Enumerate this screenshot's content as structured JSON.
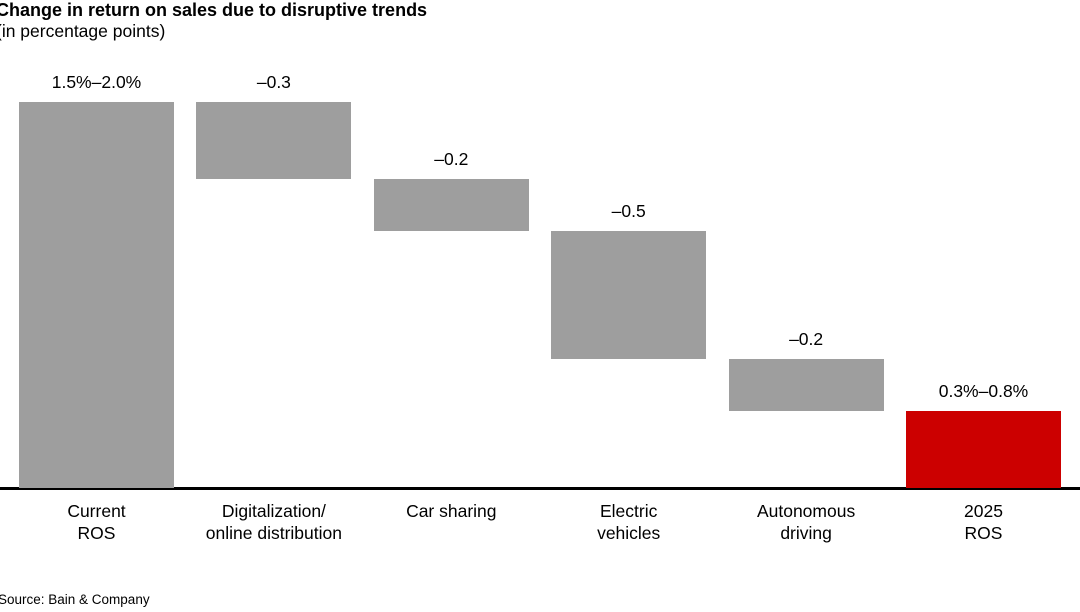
{
  "chart_data": {
    "type": "bar",
    "subtype": "waterfall",
    "title": "Change in return on sales due to disruptive trends",
    "subtitle": "(in percentage points)",
    "source": "Source: Bain & Company",
    "xlabel": "",
    "ylabel": "",
    "ylim": [
      0,
      1.5
    ],
    "grid": false,
    "legend": "none",
    "categories": [
      "Current\nROS",
      "Digitalization/\nonline distribution",
      "Car sharing",
      "Electric\nvehicles",
      "Autonomous\ndriving",
      "2025\nROS"
    ],
    "category_slugs": [
      "current-ros",
      "digitalization-online-distribution",
      "car-sharing",
      "electric-vehicles",
      "autonomous-driving",
      "2025-ros"
    ],
    "bars": [
      {
        "label": "1.5%–2.0%",
        "start": 0.0,
        "end": 1.5,
        "color_key": "gray",
        "value_range_low": 1.5,
        "value_range_high": 2.0
      },
      {
        "label": "–0.3",
        "start": 1.5,
        "end": 1.2,
        "color_key": "gray",
        "delta": -0.3
      },
      {
        "label": "–0.2",
        "start": 1.2,
        "end": 1.0,
        "color_key": "gray",
        "delta": -0.2
      },
      {
        "label": "–0.5",
        "start": 1.0,
        "end": 0.5,
        "color_key": "gray",
        "delta": -0.5
      },
      {
        "label": "–0.2",
        "start": 0.5,
        "end": 0.3,
        "color_key": "gray",
        "delta": -0.2
      },
      {
        "label": "0.3%–0.8%",
        "start": 0.3,
        "end": 0.0,
        "color_key": "red",
        "value_range_low": 0.3,
        "value_range_high": 0.8
      }
    ],
    "colors": {
      "gray": "#9e9e9e",
      "red": "#cc0000",
      "axis": "#000000",
      "text": "#000000",
      "background": "#ffffff"
    }
  }
}
